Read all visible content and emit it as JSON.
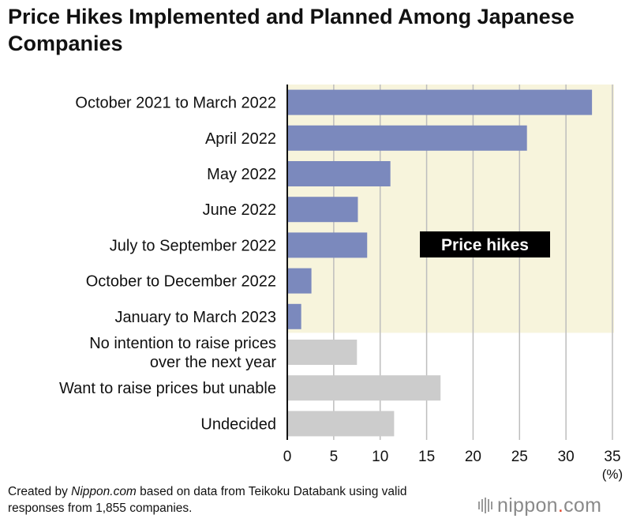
{
  "title": "Price Hikes Implemented and Planned Among Japanese Companies",
  "footnote": {
    "prefix": "Created by ",
    "source_name": "Nippon.com",
    "suffix": " based on data from Teikoku Databank using valid responses from 1,855 companies."
  },
  "logo": {
    "name": "nippon",
    "dot": ".",
    "tld": "com"
  },
  "colors": {
    "price_hike_bar": "#7b89bd",
    "other_bar": "#cccccc",
    "price_hike_band": "#f7f4dc",
    "gridline": "#bdbdbd",
    "label_box": "#000000",
    "label_text": "#ffffff"
  },
  "chart_data": {
    "type": "bar",
    "orientation": "horizontal",
    "categories": [
      "October 2021 to March 2022",
      "April 2022",
      "May 2022",
      "June 2022",
      "July to September 2022",
      "October to December 2022",
      "January to March 2023",
      "No intention to raise prices over the next year",
      "Want to raise prices but unable",
      "Undecided"
    ],
    "category_lines": [
      [
        "October 2021 to March 2022"
      ],
      [
        "April 2022"
      ],
      [
        "May 2022"
      ],
      [
        "June 2022"
      ],
      [
        "July to September 2022"
      ],
      [
        "October to December 2022"
      ],
      [
        "January to March 2023"
      ],
      [
        "No intention to raise prices",
        "over the next year"
      ],
      [
        "Want to raise prices but unable"
      ],
      [
        "Undecided"
      ]
    ],
    "values": [
      32.8,
      25.8,
      11.1,
      7.6,
      8.6,
      2.6,
      1.5,
      7.5,
      16.5,
      11.5
    ],
    "group": [
      "price_hike",
      "price_hike",
      "price_hike",
      "price_hike",
      "price_hike",
      "price_hike",
      "price_hike",
      "other",
      "other",
      "other"
    ],
    "group_label": "Price hikes",
    "xlim": [
      0,
      35
    ],
    "xticks": [
      0,
      5,
      10,
      15,
      20,
      25,
      30,
      35
    ],
    "unit": "(%)",
    "grid": true
  }
}
